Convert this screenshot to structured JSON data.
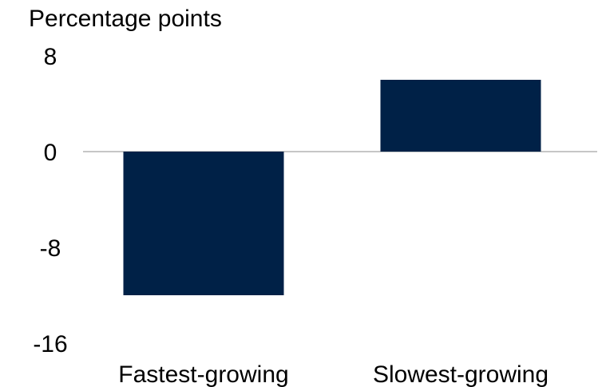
{
  "chart_data": {
    "type": "bar",
    "title": "",
    "xlabel": "",
    "ylabel": "Percentage points",
    "categories": [
      "Fastest-growing",
      "Slowest-growing"
    ],
    "values": [
      -12,
      6
    ],
    "ylim": [
      -16,
      8
    ],
    "yticks": [
      "8",
      "0",
      "-8",
      "-16"
    ],
    "grid": false,
    "bar_color": "#002147",
    "zero_line_color": "#b3b3b3"
  }
}
